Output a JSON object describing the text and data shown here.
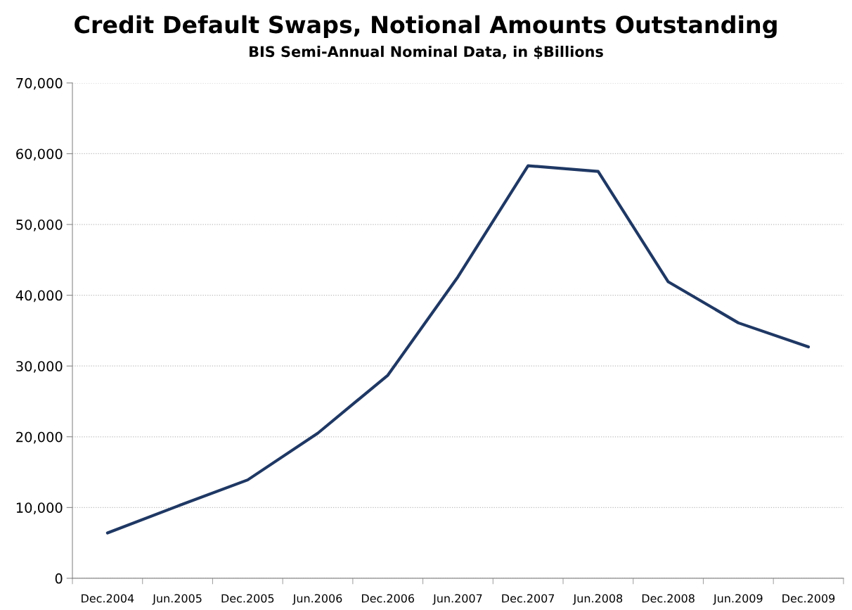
{
  "chart_data": {
    "type": "line",
    "title": "Credit Default Swaps, Notional Amounts Outstanding",
    "subtitle": "BIS Semi-Annual Nominal Data, in $Billions",
    "categories": [
      "Dec.2004",
      "Jun.2005",
      "Dec.2005",
      "Jun.2006",
      "Dec.2006",
      "Jun.2007",
      "Dec.2007",
      "Jun.2008",
      "Dec.2008",
      "Jun.2009",
      "Dec.2009"
    ],
    "series": [
      {
        "color": "#1f3864",
        "values": [
          6400,
          10200,
          13900,
          20500,
          28700,
          42600,
          58300,
          57500,
          41900,
          36100,
          32700
        ]
      }
    ],
    "ylim": [
      0,
      70000
    ],
    "yticks": [
      0,
      {
        "value": 10000,
        "label": "10,000"
      },
      {
        "value": 20000,
        "label": "20,000"
      },
      {
        "value": 30000,
        "label": "30,000"
      },
      {
        "value": 40000,
        "label": "40,000"
      },
      {
        "value": 50000,
        "label": "50,000"
      },
      {
        "value": 60000,
        "label": "60,000"
      },
      {
        "value": 70000,
        "label": "70,000"
      }
    ],
    "grid": "y",
    "marker": "none",
    "line_style": "solid"
  }
}
